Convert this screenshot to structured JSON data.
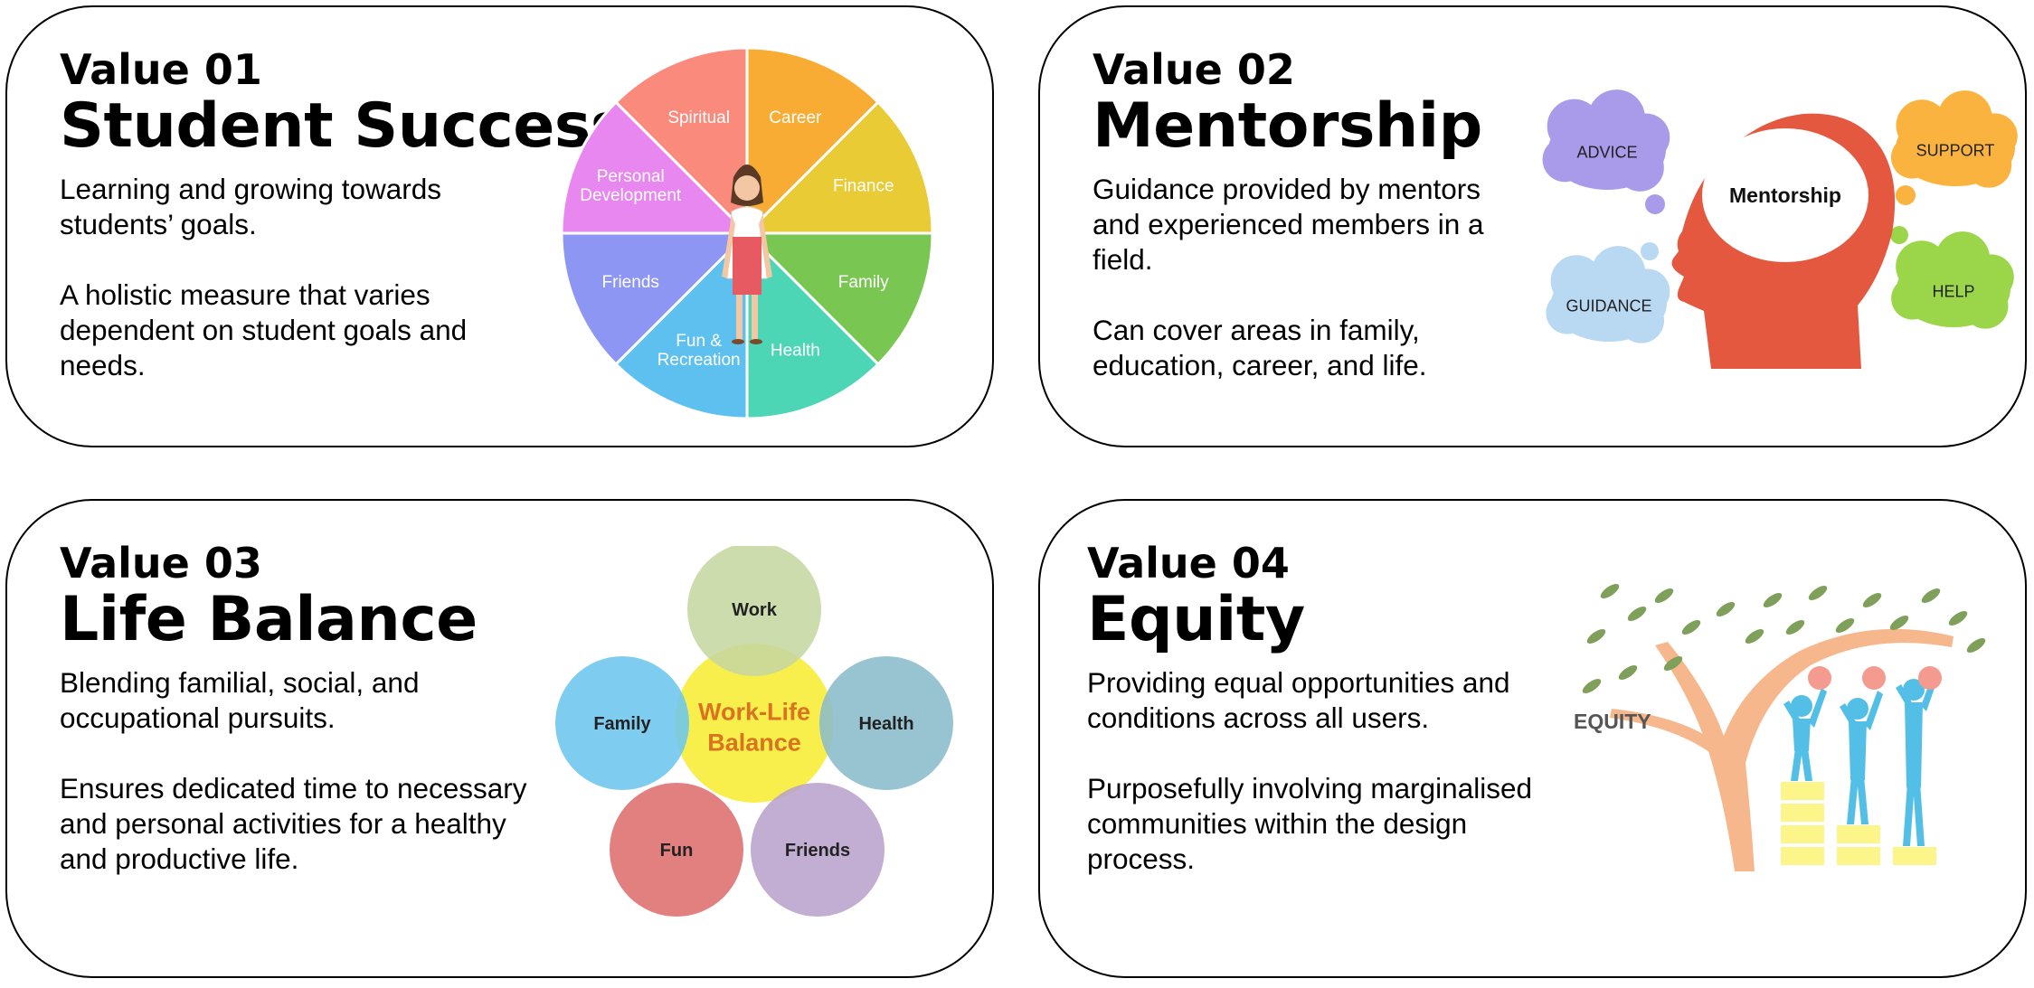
{
  "values": [
    {
      "kicker": "Value 01",
      "title": "Student Success",
      "paragraphs": [
        "Learning and growing towards students’ goals.",
        "A holistic measure that varies dependent on student goals and needs."
      ],
      "wheel": {
        "segments": [
          {
            "label": "Career",
            "color": "#f8ac33"
          },
          {
            "label": "Finance",
            "color": "#e8cb35"
          },
          {
            "label": "Family",
            "color": "#79c653"
          },
          {
            "label": "Health",
            "color": "#4dd6b6"
          },
          {
            "label": "Fun &\nRecreation",
            "color": "#5ec0ee"
          },
          {
            "label": "Friends",
            "color": "#8d96f2"
          },
          {
            "label": "Personal\nDevelopment",
            "color": "#e887ef"
          },
          {
            "label": "Spiritual",
            "color": "#fa8a7c"
          }
        ]
      }
    },
    {
      "kicker": "Value 02",
      "title": "Mentorship",
      "paragraphs": [
        "Guidance provided by mentors and experienced members in a field.",
        "Can cover areas in family, education, career, and life."
      ],
      "head_label": "Mentorship",
      "clouds": [
        {
          "label": "ADVICE",
          "color": "#a99aea"
        },
        {
          "label": "SUPPORT",
          "color": "#fbb33f"
        },
        {
          "label": "GUIDANCE",
          "color": "#b9d8f2"
        },
        {
          "label": "HELP",
          "color": "#9bd64a"
        }
      ],
      "head_color": "#e4583f"
    },
    {
      "kicker": "Value 03",
      "title": "Life Balance",
      "paragraphs": [
        "Blending familial, social, and occupational pursuits.",
        "Ensures dedicated time to necessary and personal activities for a healthy and productive life."
      ],
      "venn": {
        "center": {
          "label": "Work-Life\nBalance",
          "color": "#f8ee4c",
          "text_color": "#d9731f"
        },
        "circles": [
          {
            "label": "Work",
            "color": "#c6d7a0"
          },
          {
            "label": "Family",
            "color": "#6cc6ee"
          },
          {
            "label": "Health",
            "color": "#8abccb"
          },
          {
            "label": "Fun",
            "color": "#dd6e6d"
          },
          {
            "label": "Friends",
            "color": "#b8a3cc"
          }
        ]
      }
    },
    {
      "kicker": "Value 04",
      "title": "Equity",
      "paragraphs": [
        "Providing equal opportunities and conditions across all users.",
        "Purposefully involving marginalised communities within the design process."
      ],
      "equity_label": "EQUITY",
      "colors": {
        "tree": "#f6b78d",
        "leaf": "#7fa05a",
        "person": "#53bfe6",
        "fruit": "#f59a8e",
        "box": "#fbf58a"
      }
    }
  ]
}
